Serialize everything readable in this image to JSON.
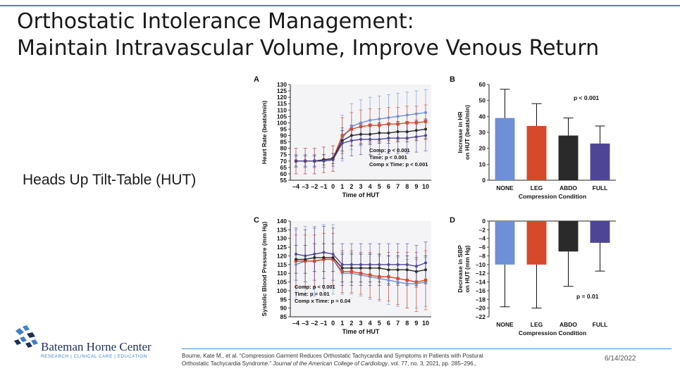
{
  "slide": {
    "title_line1": "Orthostatic Intolerance Management:",
    "title_line2": "Maintain Intravascular Volume, Improve Venous Return",
    "left_label": "Heads Up Tilt-Table (HUT)",
    "date": "6/14/2022",
    "citation_a": "Bourne, Kate M., et al. “Compression Garment Reduces Orthostatic Tachycardia and Symptoms in Patients with Postural",
    "citation_b": "Orthostatic Tachycardia Syndrome.”",
    "citation_journal": "Journal of the American College of Cardiology",
    "citation_c": ", vol. 77, no. 3, 2021, pp. 285–296.,",
    "logo_name": "Bateman Horne Center",
    "logo_tag": "RESEARCH | CLINICAL CARE | EDUCATION"
  },
  "colors": {
    "none": "#6f8fd6",
    "leg": "#d6492b",
    "abdo": "#2a2a2a",
    "full": "#4f4597",
    "accent_line": "#3a8fd0"
  },
  "chart_data": [
    {
      "panel": "A",
      "type": "line",
      "xlabel": "Time of HUT",
      "ylabel": "Heart Rate (beats/min)",
      "ylim": [
        55,
        130
      ],
      "yticks": [
        55,
        60,
        65,
        70,
        75,
        80,
        85,
        90,
        95,
        100,
        105,
        110,
        115,
        120,
        125,
        130
      ],
      "x": [
        "–4",
        "–3",
        "–2",
        "–1",
        "0",
        "1",
        "2",
        "3",
        "4",
        "5",
        "6",
        "7",
        "8",
        "9",
        "10"
      ],
      "error_bars": true,
      "annotations": [
        "Comp: p < 0.001",
        "Time: p < 0.001",
        "Comp x Time: p < 0.001"
      ],
      "series": [
        {
          "key": "none",
          "values": [
            70,
            70,
            70,
            71,
            72,
            88,
            97,
            100,
            102,
            103,
            104,
            105,
            106,
            107,
            108
          ],
          "err": [
            10,
            10,
            10,
            10,
            10,
            18,
            18,
            18,
            18,
            18,
            18,
            18,
            18,
            18,
            18
          ]
        },
        {
          "key": "leg",
          "values": [
            70,
            70,
            70,
            71,
            72,
            90,
            95,
            97,
            98,
            98,
            99,
            99,
            100,
            100,
            101
          ],
          "err": [
            10,
            10,
            10,
            10,
            10,
            14,
            13,
            13,
            13,
            13,
            13,
            13,
            13,
            13,
            13
          ]
        },
        {
          "key": "abdo",
          "values": [
            70,
            70,
            70,
            71,
            72,
            86,
            90,
            91,
            91,
            92,
            92,
            93,
            93,
            94,
            95
          ],
          "err": [
            4,
            4,
            4,
            4,
            4,
            8,
            8,
            8,
            8,
            8,
            8,
            8,
            8,
            8,
            8
          ]
        },
        {
          "key": "full",
          "values": [
            70,
            70,
            70,
            70,
            71,
            84,
            86,
            87,
            87,
            87,
            88,
            88,
            88,
            89,
            90
          ],
          "err": [
            5,
            5,
            5,
            5,
            5,
            12,
            12,
            12,
            12,
            12,
            12,
            12,
            12,
            12,
            12
          ]
        }
      ]
    },
    {
      "panel": "B",
      "type": "bar",
      "xlabel": "Compression Condition",
      "ylabel_line1": "Increase in HR",
      "ylabel_line2": "on HUT (beats/min)",
      "ylim": [
        0,
        60
      ],
      "yticks": [
        0,
        10,
        20,
        30,
        40,
        50,
        60
      ],
      "categories": [
        "NONE",
        "LEG",
        "ABDO",
        "FULL"
      ],
      "values": [
        39,
        34,
        28,
        23
      ],
      "err": [
        18,
        14,
        11,
        11
      ],
      "annotation": "p < 0.001"
    },
    {
      "panel": "C",
      "type": "line",
      "xlabel": "Time of HUT",
      "ylabel": "Systolic Blood Pressure (mm Hg)",
      "ylim": [
        85,
        140
      ],
      "yticks": [
        85,
        90,
        95,
        100,
        105,
        110,
        115,
        120,
        125,
        130,
        135,
        140
      ],
      "x": [
        "–4",
        "–3",
        "–2",
        "–1",
        "0",
        "1",
        "2",
        "3",
        "4",
        "5",
        "6",
        "7",
        "8",
        "9",
        "10"
      ],
      "error_bars": true,
      "annotations": [
        "Comp: p < 0.001",
        "Time: p = 0.01",
        "Comp x Time: p = 0.04"
      ],
      "series": [
        {
          "key": "none",
          "values": [
            115,
            117,
            117,
            118,
            118,
            110,
            110,
            109,
            108,
            107,
            106,
            105,
            104,
            104,
            105
          ],
          "err": [
            20,
            20,
            20,
            20,
            20,
            12,
            12,
            12,
            13,
            13,
            14,
            14,
            14,
            14,
            14
          ]
        },
        {
          "key": "leg",
          "values": [
            117,
            117,
            117,
            118,
            118,
            111,
            111,
            110,
            109,
            108,
            108,
            107,
            106,
            105,
            106
          ],
          "err": [
            15,
            15,
            15,
            15,
            15,
            12,
            12,
            12,
            13,
            13,
            14,
            15,
            16,
            17,
            17
          ]
        },
        {
          "key": "abdo",
          "values": [
            118,
            118,
            119,
            119,
            119,
            113,
            113,
            113,
            113,
            113,
            112,
            112,
            112,
            111,
            112
          ],
          "err": [
            8,
            8,
            8,
            8,
            8,
            8,
            8,
            8,
            8,
            8,
            8,
            8,
            8,
            8,
            8
          ]
        },
        {
          "key": "full",
          "values": [
            121,
            120,
            121,
            122,
            121,
            115,
            115,
            115,
            115,
            115,
            115,
            115,
            115,
            114,
            116
          ],
          "err": [
            15,
            15,
            15,
            15,
            15,
            12,
            12,
            12,
            12,
            12,
            12,
            12,
            12,
            12,
            12
          ]
        }
      ]
    },
    {
      "panel": "D",
      "type": "bar",
      "xlabel": "Compression Condition",
      "ylabel_line1": "Decrease in SBP",
      "ylabel_line2": "on HUT (mm Hg)",
      "ylim": [
        -22,
        0
      ],
      "yticks": [
        0,
        -2,
        -4,
        -6,
        -8,
        -10,
        -12,
        -14,
        -16,
        -18,
        -20,
        -22
      ],
      "categories": [
        "NONE",
        "LEG",
        "ABDO",
        "FULL"
      ],
      "values": [
        -10,
        -10,
        -7,
        -5
      ],
      "err": [
        9.7,
        10,
        8,
        6.5
      ],
      "annotation": "p = 0.01"
    }
  ]
}
